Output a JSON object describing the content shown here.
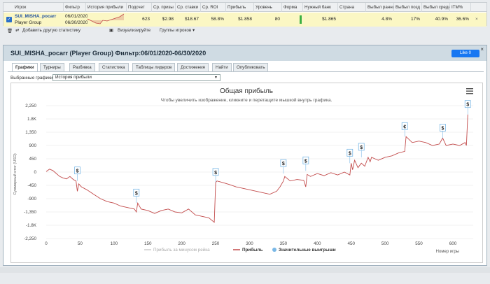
{
  "table": {
    "headers": [
      "Игрок",
      "Фильтр",
      "История прибыли",
      "Подсчет",
      "Ср. призы",
      "Ср. ставки",
      "Ср. ROI",
      "Прибыль",
      "Уровень",
      "Форма",
      "Нужный банк",
      "Страна",
      "Выбыл ранний",
      "Выбыл позд",
      "Выбыл средний",
      "ITM%"
    ],
    "row": {
      "player_name": "SUI_MISHA_pocarr",
      "player_group": "Player Group",
      "filter_from": "06/01/2020",
      "filter_to": "06/30/2020",
      "count": "623",
      "avg_prize": "$2.98",
      "avg_stake": "$18.67",
      "avg_roi": "58.8%",
      "profit": "$1.858",
      "level": "80",
      "bankroll": "$1.865",
      "early": "4.8%",
      "late": "17%",
      "mid": "40.9%",
      "itm": "36.6%",
      "remove": "×"
    }
  },
  "toolbar": {
    "add_stat": "Добавить другую статистику",
    "visualize": "Визуализируйте",
    "groups": "Группы игроков"
  },
  "panel": {
    "title": "SUI_MISHA_pocarr (Player Group) Фильтр:06/01/2020-06/30/2020",
    "like": "Like 0",
    "close": "×",
    "tabs": [
      "Графики",
      "Турниры",
      "Разбивка",
      "Статистика",
      "Таблицы лидеров",
      "Достижения",
      "Найти",
      "Опубликовать"
    ],
    "select_label": "Выбранные графики:",
    "select_value": "История прибыли"
  },
  "chart_data": {
    "type": "line",
    "title": "Общая прибыль",
    "subtitle": "Чтобы увеличить изображение, кликните и перетащите мышкой внутрь графика.",
    "ylabel": "Суммарный итог (USD)",
    "xlabel": "Номер игры",
    "yticks": [
      "2,250",
      "1.8K",
      "1,350",
      "900",
      "450",
      "0",
      "-450",
      "-900",
      "-1,350",
      "-1.8K",
      "-2,250"
    ],
    "ylim": [
      -2250,
      2250
    ],
    "xlim": [
      0,
      630
    ],
    "xticks": [
      0,
      50,
      100,
      150,
      200,
      250,
      300,
      350,
      400,
      450,
      500,
      550,
      600
    ],
    "legend": [
      "Прибыль за минусом рейка",
      "Прибыль",
      "Значительные выигрыши"
    ],
    "series": [
      {
        "name": "Прибыль",
        "x": [
          0,
          5,
          10,
          15,
          20,
          25,
          30,
          35,
          40,
          44,
          46,
          48,
          52,
          60,
          70,
          80,
          90,
          100,
          110,
          120,
          130,
          133,
          135,
          140,
          150,
          160,
          170,
          180,
          190,
          200,
          210,
          220,
          230,
          240,
          248,
          250,
          252,
          260,
          270,
          280,
          290,
          300,
          310,
          320,
          330,
          340,
          345,
          350,
          352,
          360,
          370,
          380,
          383,
          385,
          390,
          400,
          410,
          420,
          430,
          440,
          448,
          450,
          452,
          455,
          460,
          465,
          470,
          475,
          478,
          480,
          490,
          500,
          510,
          520,
          529,
          531,
          540,
          550,
          560,
          570,
          580,
          585,
          590,
          600,
          610,
          618,
          620,
          622
        ],
        "values": [
          20,
          100,
          50,
          -50,
          -150,
          -200,
          -230,
          -150,
          -250,
          -300,
          -650,
          -400,
          -500,
          -600,
          -750,
          -900,
          -1000,
          -1050,
          -1150,
          -1200,
          -1250,
          -1350,
          -1050,
          -1250,
          -1300,
          -1400,
          -1300,
          -1250,
          -1350,
          -1380,
          -1250,
          -1450,
          -1500,
          -1550,
          -1700,
          -350,
          -300,
          -350,
          -420,
          -500,
          -550,
          -600,
          -650,
          -700,
          -750,
          -650,
          -500,
          -300,
          -150,
          -300,
          -250,
          -280,
          -500,
          -80,
          -150,
          -50,
          -120,
          -20,
          -100,
          0,
          -100,
          300,
          80,
          400,
          150,
          300,
          200,
          500,
          350,
          500,
          400,
          500,
          550,
          650,
          700,
          1200,
          1000,
          1050,
          1000,
          900,
          950,
          1150,
          900,
          950,
          900,
          1000,
          900,
          1950
        ]
      }
    ],
    "big_wins": [
      {
        "x": 46,
        "y": -300,
        "label": "$"
      },
      {
        "x": 133,
        "y": -1050,
        "label": "$"
      },
      {
        "x": 250,
        "y": -350,
        "label": "$"
      },
      {
        "x": 350,
        "y": -50,
        "label": "$"
      },
      {
        "x": 383,
        "y": 40,
        "label": "$"
      },
      {
        "x": 448,
        "y": 300,
        "label": "$"
      },
      {
        "x": 465,
        "y": 500,
        "label": "$"
      },
      {
        "x": 529,
        "y": 1200,
        "label": "€"
      },
      {
        "x": 585,
        "y": 1150,
        "label": "$"
      },
      {
        "x": 622,
        "y": 1950,
        "label": "$"
      }
    ],
    "colors": {
      "line": "#c24b4b",
      "net": "#cccccc",
      "wins": "#7ab8e6"
    }
  }
}
